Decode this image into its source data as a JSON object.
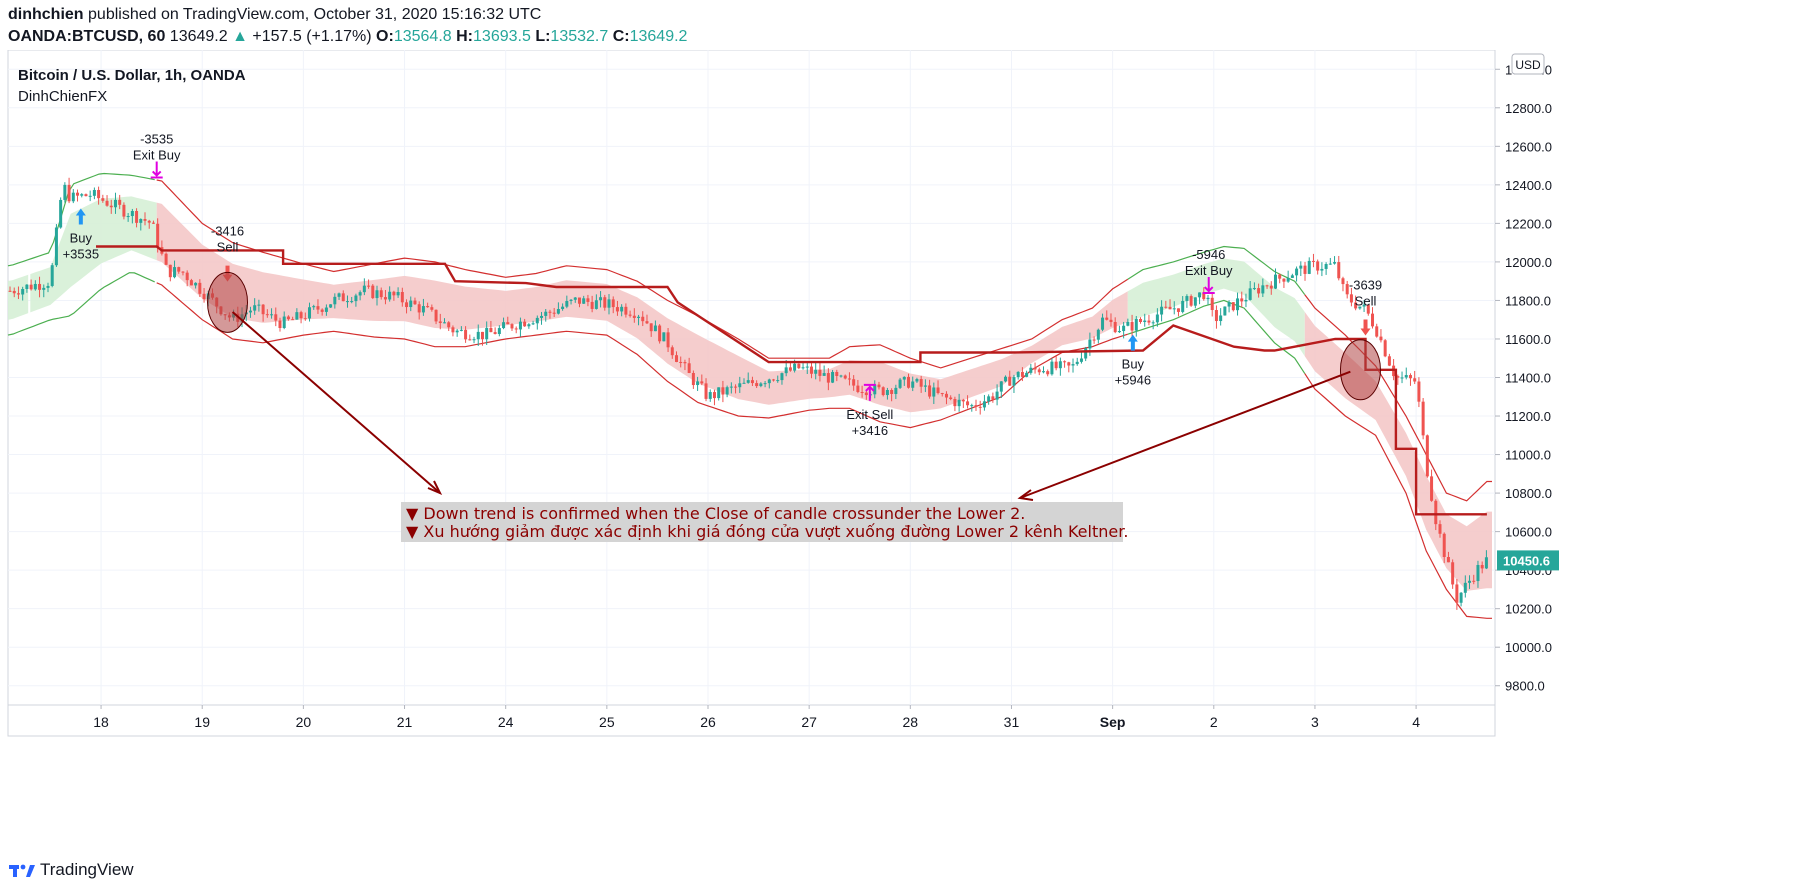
{
  "header": {
    "author": "dinhchien",
    "published_text": "published on TradingView.com, October 31, 2020 15:16:32 UTC",
    "symbol": "OANDA:BTCUSD, 60",
    "last": "13649.2",
    "change": "+157.5 (+1.17%)",
    "o_label": "O:",
    "o_value": "13564.8",
    "h_label": "H:",
    "h_value": "13693.5",
    "l_label": "L:",
    "l_value": "13532.7",
    "c_label": "C:",
    "c_value": "13649.2"
  },
  "pane": {
    "title": "Bitcoin / U.S. Dollar, 1h, OANDA",
    "subtitle": "DinhChienFX",
    "currency": "USD"
  },
  "footer": {
    "brand": "TradingView"
  },
  "colors": {
    "up": "#26a69a",
    "down": "#ef5350",
    "band_up_fill": "#d6efd6",
    "band_down_fill": "#f4c8c8",
    "channel_up": "#4caf50",
    "channel_down": "#d32f2f",
    "stop_line": "#b71c1c",
    "buy_arrow": "#2196f3",
    "exit_marker": "#e000e0",
    "note_bg": "#d4d4d4",
    "note_text": "#8b0000",
    "price_tag": "#26a69a"
  },
  "chart_data": {
    "type": "line",
    "y_axis": {
      "ylim": [
        9700,
        13100
      ],
      "ticks": [
        9800,
        10000,
        10200,
        10400,
        10600,
        10800,
        11000,
        11200,
        11400,
        11600,
        11800,
        12000,
        12200,
        12400,
        12600,
        12800,
        13000
      ],
      "tick_labels": [
        "9800.0",
        "10000.0",
        "10200.0",
        "10400.0",
        "10600.0",
        "10800.0",
        "11000.0",
        "11200.0",
        "11400.0",
        "11600.0",
        "11800.0",
        "12000.0",
        "12200.0",
        "12400.0",
        "12600.0",
        "12800.0",
        "13000.0"
      ]
    },
    "x_axis": {
      "xlim": [
        17.08,
        31.78
      ],
      "ticks": [
        18,
        19,
        20,
        21,
        22,
        23,
        24,
        25,
        26,
        27,
        28,
        29,
        30,
        31
      ],
      "tick_labels": [
        "18",
        "19",
        "20",
        "21",
        "24",
        "25",
        "26",
        "27",
        "28",
        "31",
        "Sep",
        "2",
        "3",
        "4"
      ]
    },
    "last_price": 10450.6,
    "last_price_label": "10450.6",
    "series": [
      {
        "role": "close",
        "x": [
          17.1,
          17.5,
          17.62,
          17.7,
          17.9,
          18.1,
          18.3,
          18.5,
          18.65,
          18.8,
          19.0,
          19.2,
          19.3,
          19.5,
          19.8,
          20.0,
          20.3,
          20.6,
          20.9,
          21.2,
          21.5,
          21.8,
          22.1,
          22.4,
          22.7,
          23.0,
          23.3,
          23.6,
          23.8,
          24.0,
          24.3,
          24.6,
          24.9,
          25.2,
          25.5,
          25.7,
          26.0,
          26.3,
          26.6,
          26.8,
          27.0,
          27.3,
          27.6,
          27.9,
          28.1,
          28.4,
          28.7,
          28.9,
          29.0,
          29.2,
          29.5,
          29.8,
          30.0,
          30.2,
          30.3,
          30.5,
          30.6,
          30.8,
          31.0,
          31.1,
          31.2,
          31.4,
          31.6,
          31.7
        ],
        "y": [
          11850,
          11900,
          12400,
          12330,
          12350,
          12300,
          12250,
          12200,
          11950,
          11950,
          11850,
          11750,
          11700,
          11760,
          11680,
          11720,
          11800,
          11850,
          11820,
          11750,
          11640,
          11620,
          11680,
          11730,
          11800,
          11780,
          11740,
          11580,
          11420,
          11300,
          11350,
          11400,
          11450,
          11400,
          11350,
          11330,
          11380,
          11300,
          11250,
          11300,
          11400,
          11450,
          11450,
          11700,
          11650,
          11720,
          11780,
          11840,
          11700,
          11780,
          11880,
          11950,
          11980,
          11980,
          11820,
          11750,
          11660,
          11400,
          11380,
          10950,
          10650,
          10250,
          10400,
          10450
        ]
      },
      {
        "role": "upper_channel",
        "x": [
          17.1,
          17.5,
          17.7,
          18.0,
          18.3,
          18.6,
          19.0,
          19.3,
          19.6,
          20.0,
          20.3,
          20.7,
          21.0,
          21.3,
          21.6,
          22.0,
          22.3,
          22.6,
          23.0,
          23.3,
          23.6,
          23.9,
          24.3,
          24.6,
          25.0,
          25.2,
          25.4,
          25.7,
          26.0,
          26.3,
          26.6,
          26.9,
          27.2,
          27.5,
          27.8,
          28.0,
          28.3,
          28.6,
          28.9,
          29.1,
          29.3,
          29.6,
          29.8,
          30.0,
          30.3,
          30.6,
          30.9,
          31.1,
          31.3,
          31.5,
          31.7
        ],
        "y": [
          11980,
          12050,
          12400,
          12460,
          12450,
          12420,
          12200,
          12100,
          12050,
          11990,
          11950,
          11990,
          12020,
          12000,
          11960,
          11920,
          11940,
          11980,
          11960,
          11900,
          11800,
          11720,
          11600,
          11500,
          11500,
          11500,
          11560,
          11570,
          11500,
          11450,
          11500,
          11550,
          11600,
          11700,
          11760,
          11860,
          11960,
          12000,
          12050,
          12080,
          12070,
          11950,
          11900,
          11760,
          11620,
          11460,
          11200,
          11000,
          10800,
          10760,
          10860
        ]
      },
      {
        "role": "lower_channel",
        "x": [
          17.1,
          17.5,
          17.7,
          18.0,
          18.3,
          18.6,
          19.0,
          19.3,
          19.6,
          20.0,
          20.3,
          20.7,
          21.0,
          21.3,
          21.6,
          22.0,
          22.3,
          22.6,
          23.0,
          23.3,
          23.6,
          23.9,
          24.3,
          24.6,
          25.0,
          25.2,
          25.4,
          25.7,
          26.0,
          26.3,
          26.6,
          26.9,
          27.2,
          27.5,
          27.8,
          28.0,
          28.3,
          28.6,
          28.9,
          29.1,
          29.3,
          29.6,
          29.8,
          30.0,
          30.3,
          30.6,
          30.9,
          31.1,
          31.3,
          31.5,
          31.7
        ],
        "y": [
          11620,
          11700,
          11720,
          11860,
          11950,
          11880,
          11700,
          11600,
          11580,
          11620,
          11640,
          11610,
          11600,
          11560,
          11560,
          11600,
          11620,
          11640,
          11620,
          11520,
          11380,
          11270,
          11200,
          11190,
          11230,
          11240,
          11240,
          11170,
          11140,
          11180,
          11240,
          11300,
          11440,
          11530,
          11560,
          11600,
          11650,
          11700,
          11770,
          11800,
          11760,
          11580,
          11500,
          11340,
          11200,
          11100,
          10800,
          10500,
          10300,
          10160,
          10150
        ]
      },
      {
        "role": "trailing_stop",
        "x": [
          17.95,
          18.55,
          18.6,
          19.3,
          19.8,
          19.8,
          21.4,
          21.5,
          22.2,
          22.5,
          22.7,
          23.6,
          23.7,
          24.6,
          24.6,
          26.1,
          26.1,
          27.0,
          27.0,
          28.3,
          28.6,
          28.6,
          29.2,
          29.5,
          29.6,
          30.2,
          30.5,
          30.5,
          30.8,
          30.8,
          31.0,
          31.0,
          31.7
        ],
        "y": [
          12080,
          12080,
          12060,
          12060,
          12060,
          11990,
          11990,
          11900,
          11890,
          11870,
          11870,
          11870,
          11790,
          11480,
          11480,
          11480,
          11530,
          11530,
          11530,
          11540,
          11670,
          11670,
          11560,
          11540,
          11540,
          11600,
          11600,
          11440,
          11440,
          11030,
          11030,
          10690,
          10690
        ]
      }
    ],
    "signals": [
      {
        "type": "buy",
        "x": 17.8,
        "y": 12215,
        "text1": "Buy",
        "text2": "+3535"
      },
      {
        "type": "exit_buy",
        "x": 18.55,
        "y": 12480,
        "text1": "-3535",
        "text2": "Exit Buy"
      },
      {
        "type": "sell",
        "x": 19.25,
        "y": 11960,
        "text1": "-3416",
        "text2": "Sell"
      },
      {
        "type": "exit_sell",
        "x": 25.6,
        "y": 11320,
        "text1": "Exit Sell",
        "text2": "+3416"
      },
      {
        "type": "buy",
        "x": 28.2,
        "y": 11560,
        "text1": "Buy",
        "text2": "+5946"
      },
      {
        "type": "exit_buy",
        "x": 28.95,
        "y": 11880,
        "text1": "-5946",
        "text2": "Exit Buy"
      },
      {
        "type": "sell",
        "x": 30.5,
        "y": 11680,
        "text1": "-3639",
        "text2": "Sell"
      }
    ],
    "annotations": [
      "▼ Down trend is confirmed when the Close of candle crossunder the Lower 2.",
      "▼ Xu hướng giảm được xác định khi giá đóng cửa vượt xuống đường Lower 2 kênh Keltner."
    ]
  }
}
